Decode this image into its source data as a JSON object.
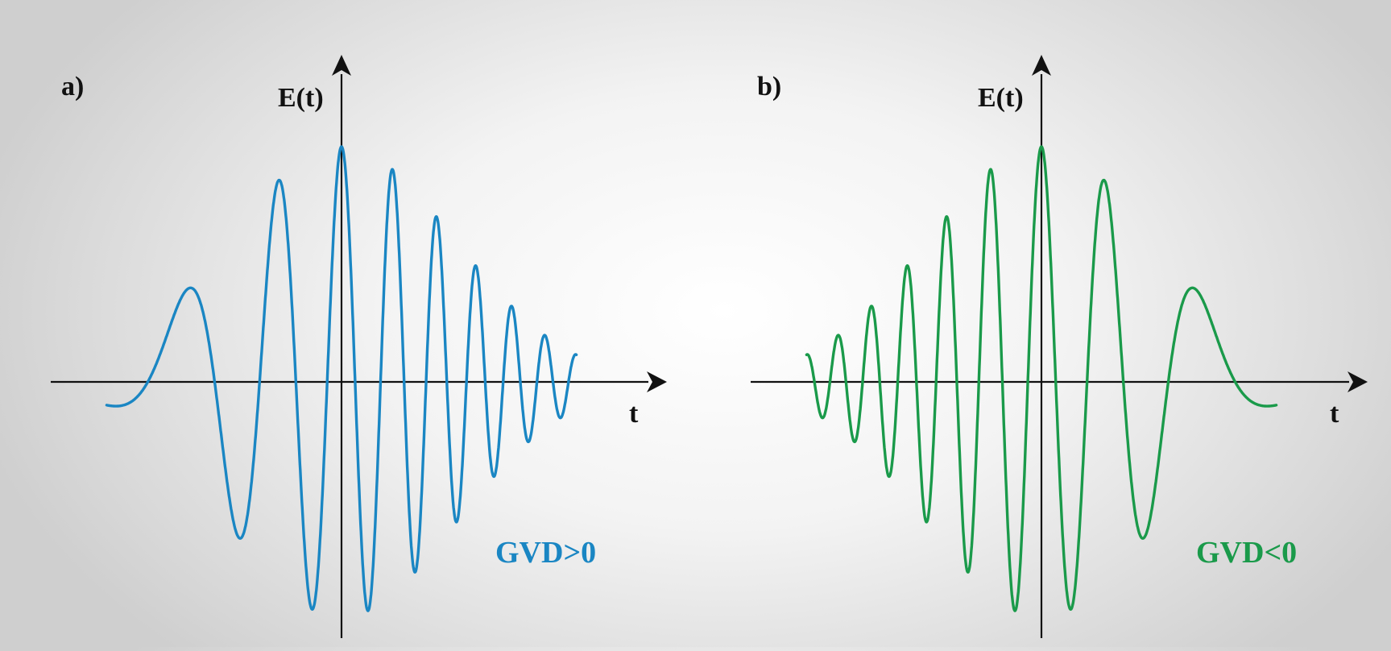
{
  "panels": [
    {
      "panel_label": "a)",
      "y_axis_label": "E(t)",
      "x_axis_label": "t",
      "annotation": "GVD>0",
      "color": "#1a86c3",
      "chirp": "positive"
    },
    {
      "panel_label": "b)",
      "y_axis_label": "E(t)",
      "x_axis_label": "t",
      "annotation": "GVD<0",
      "color": "#1a9a4a",
      "chirp": "negative"
    }
  ],
  "colors": {
    "axis": "#111111",
    "text": "#111111"
  }
}
